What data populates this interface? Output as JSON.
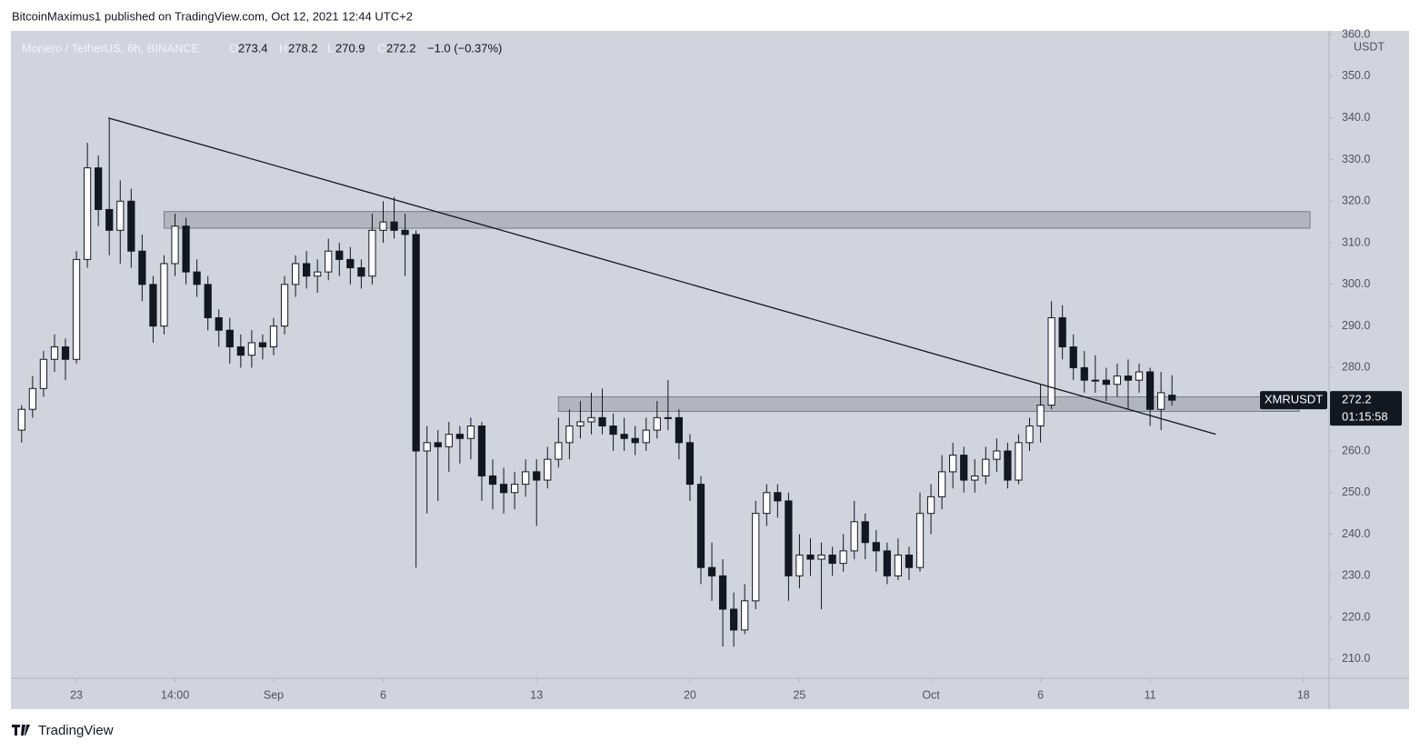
{
  "header": {
    "publisher": "BitcoinMaximus1 published on TradingView.com, Oct 12, 2021 12:44 UTC+2"
  },
  "footer": {
    "brand": "TradingView"
  },
  "chart_data": {
    "type": "candlestick",
    "title": "Monero / TetherUS, 6h, BINANCE",
    "ohlc_legend": {
      "o_label": "O",
      "o": 273.4,
      "h_label": "H",
      "h": 278.2,
      "l_label": "L",
      "l": 270.9,
      "c_label": "C",
      "c": 272.2,
      "change": "−1.0 (−0.37%)"
    },
    "y_unit": "USDT",
    "symbol": "XMRUSDT",
    "last_price": {
      "value": 272.2,
      "label": "272.2"
    },
    "countdown": "01:15:58",
    "up_color": "#ffffff",
    "down_color": "#131722",
    "grid": false,
    "xlim": [
      -2.99,
      57.17
    ],
    "ylim": [
      205.4,
      360.9
    ],
    "xticks": [
      {
        "value": 0,
        "label": "23"
      },
      {
        "value": 4.5,
        "label": "14:00"
      },
      {
        "value": 9,
        "label": "Sep"
      },
      {
        "value": 14,
        "label": "6"
      },
      {
        "value": 21,
        "label": "13"
      },
      {
        "value": 28,
        "label": "20"
      },
      {
        "value": 33,
        "label": "25"
      },
      {
        "value": 39,
        "label": "Oct"
      },
      {
        "value": 44,
        "label": "6"
      },
      {
        "value": 49,
        "label": "11"
      },
      {
        "value": 56,
        "label": "18"
      }
    ],
    "yticks": [
      {
        "value": 210,
        "label": "210.0"
      },
      {
        "value": 220,
        "label": "220.0"
      },
      {
        "value": 230,
        "label": "230.0"
      },
      {
        "value": 240,
        "label": "240.0"
      },
      {
        "value": 250,
        "label": "250.0"
      },
      {
        "value": 260,
        "label": "260.0"
      },
      {
        "value": 270,
        "label": "270.0"
      },
      {
        "value": 280,
        "label": "280.0"
      },
      {
        "value": 290,
        "label": "290.0"
      },
      {
        "value": 300,
        "label": "300.0"
      },
      {
        "value": 310,
        "label": "310.0"
      },
      {
        "value": 320,
        "label": "320.0"
      },
      {
        "value": 330,
        "label": "330.0"
      },
      {
        "value": 340,
        "label": "340.0"
      },
      {
        "value": 350,
        "label": "350.0"
      },
      {
        "value": 360,
        "label": "360.0"
      }
    ],
    "zones": [
      {
        "from": 4.0,
        "to": 56.3,
        "low": 313.5,
        "high": 317.5
      },
      {
        "from": 22.0,
        "to": 55.8,
        "low": 269.5,
        "high": 273
      }
    ],
    "trendline": {
      "x": [
        1.45,
        52.0
      ],
      "y": [
        340,
        264
      ]
    },
    "x": [
      -2.5,
      -2,
      -1.5,
      -1,
      -0.5,
      0,
      0.5,
      1,
      1.5,
      2,
      2.5,
      3,
      3.5,
      4,
      4.5,
      5,
      5.5,
      6,
      6.5,
      7,
      7.5,
      8,
      8.5,
      9,
      9.5,
      10,
      10.5,
      11,
      11.5,
      12,
      12.5,
      13,
      13.5,
      14,
      14.5,
      15,
      15.5,
      16,
      16.5,
      17,
      17.5,
      18,
      18.5,
      19,
      19.5,
      20,
      20.5,
      21,
      21.5,
      22,
      22.5,
      23,
      23.5,
      24,
      24.5,
      25,
      25.5,
      26,
      26.5,
      27,
      27.5,
      28,
      28.5,
      29,
      29.5,
      30,
      30.5,
      31,
      31.5,
      32,
      32.5,
      33,
      33.5,
      34,
      34.5,
      35,
      35.5,
      36,
      36.5,
      37,
      37.5,
      38,
      38.5,
      39,
      39.5,
      40,
      40.5,
      41,
      41.5,
      42,
      42.5,
      43,
      43.5,
      44,
      44.5,
      45,
      45.5,
      46,
      46.5,
      47,
      47.5,
      48,
      48.5,
      49,
      49.5,
      50
    ],
    "candles": [
      [
        265,
        271,
        262,
        270
      ],
      [
        270,
        278,
        268,
        275
      ],
      [
        275,
        284,
        273,
        282
      ],
      [
        282,
        288,
        279,
        285
      ],
      [
        285,
        287,
        277,
        282
      ],
      [
        282,
        308,
        281,
        306
      ],
      [
        306,
        334,
        304,
        328
      ],
      [
        328,
        331,
        314,
        318
      ],
      [
        318,
        340,
        307,
        313
      ],
      [
        313,
        325,
        305,
        320
      ],
      [
        320,
        323,
        304,
        308
      ],
      [
        308,
        312,
        296,
        300
      ],
      [
        300,
        302,
        286,
        290
      ],
      [
        290,
        307,
        288,
        305
      ],
      [
        305,
        317,
        302,
        314
      ],
      [
        314,
        316,
        300,
        303
      ],
      [
        303,
        306,
        297,
        300
      ],
      [
        300,
        302,
        289,
        292
      ],
      [
        292,
        294,
        285,
        289
      ],
      [
        289,
        292,
        281,
        285
      ],
      [
        285,
        288,
        280,
        283
      ],
      [
        283,
        289,
        280,
        286
      ],
      [
        286,
        288,
        282,
        285
      ],
      [
        285,
        292,
        283,
        290
      ],
      [
        290,
        302,
        288,
        300
      ],
      [
        300,
        307,
        297,
        305
      ],
      [
        305,
        308,
        299,
        302
      ],
      [
        302,
        306,
        298,
        303
      ],
      [
        303,
        311,
        301,
        308
      ],
      [
        308,
        310,
        302,
        306
      ],
      [
        306,
        309,
        300,
        304
      ],
      [
        304,
        306,
        299,
        302
      ],
      [
        302,
        317,
        300,
        313
      ],
      [
        313,
        320,
        310,
        315
      ],
      [
        315,
        321,
        311,
        313
      ],
      [
        313,
        317,
        302,
        312
      ],
      [
        312,
        313,
        232,
        260
      ],
      [
        260,
        266,
        245,
        262
      ],
      [
        262,
        265,
        248,
        261
      ],
      [
        261,
        267,
        255,
        264
      ],
      [
        264,
        266,
        257,
        263
      ],
      [
        263,
        268,
        258,
        266
      ],
      [
        266,
        267,
        248,
        254
      ],
      [
        254,
        258,
        246,
        252
      ],
      [
        252,
        256,
        245,
        250
      ],
      [
        250,
        255,
        246,
        252
      ],
      [
        252,
        258,
        249,
        255
      ],
      [
        255,
        258,
        242,
        253
      ],
      [
        253,
        261,
        251,
        258
      ],
      [
        258,
        268,
        256,
        262
      ],
      [
        262,
        270,
        258,
        266
      ],
      [
        266,
        272,
        263,
        267
      ],
      [
        267,
        274,
        264,
        268
      ],
      [
        268,
        275,
        264,
        266
      ],
      [
        266,
        269,
        260,
        264
      ],
      [
        264,
        268,
        260,
        263
      ],
      [
        263,
        266,
        259,
        262
      ],
      [
        262,
        268,
        260,
        265
      ],
      [
        265,
        272,
        263,
        268
      ],
      [
        268,
        277,
        265,
        268
      ],
      [
        268,
        270,
        258,
        262
      ],
      [
        262,
        264,
        248,
        252
      ],
      [
        252,
        254,
        228,
        232
      ],
      [
        232,
        238,
        224,
        230
      ],
      [
        230,
        234,
        213,
        222
      ],
      [
        222,
        226,
        213,
        217
      ],
      [
        217,
        228,
        216,
        224
      ],
      [
        224,
        248,
        222,
        245
      ],
      [
        245,
        252,
        242,
        250
      ],
      [
        250,
        252,
        244,
        248
      ],
      [
        248,
        250,
        224,
        230
      ],
      [
        230,
        240,
        227,
        235
      ],
      [
        235,
        239,
        230,
        234
      ],
      [
        234,
        238,
        222,
        235
      ],
      [
        235,
        237,
        230,
        233
      ],
      [
        233,
        240,
        231,
        236
      ],
      [
        236,
        248,
        234,
        243
      ],
      [
        243,
        245,
        234,
        238
      ],
      [
        238,
        241,
        231,
        236
      ],
      [
        236,
        238,
        228,
        230
      ],
      [
        230,
        239,
        229,
        235
      ],
      [
        235,
        237,
        229,
        232
      ],
      [
        232,
        250,
        231,
        245
      ],
      [
        245,
        252,
        240,
        249
      ],
      [
        249,
        259,
        246,
        255
      ],
      [
        255,
        262,
        251,
        259
      ],
      [
        259,
        261,
        250,
        253
      ],
      [
        253,
        258,
        250,
        254
      ],
      [
        254,
        261,
        252,
        258
      ],
      [
        258,
        263,
        255,
        260
      ],
      [
        260,
        262,
        251,
        253
      ],
      [
        253,
        264,
        252,
        262
      ],
      [
        262,
        268,
        260,
        266
      ],
      [
        266,
        276,
        262,
        271
      ],
      [
        271,
        296,
        270,
        292
      ],
      [
        292,
        295,
        282,
        285
      ],
      [
        285,
        288,
        277,
        280
      ],
      [
        280,
        284,
        274,
        277
      ],
      [
        277,
        283,
        274,
        277
      ],
      [
        277,
        280,
        272,
        276
      ],
      [
        276,
        281,
        273,
        278
      ],
      [
        278,
        282,
        270,
        277
      ],
      [
        277,
        281,
        274,
        279
      ],
      [
        279,
        280,
        266,
        270
      ],
      [
        270,
        279,
        265,
        274
      ],
      [
        273.4,
        278.2,
        270.9,
        272.2
      ]
    ]
  }
}
